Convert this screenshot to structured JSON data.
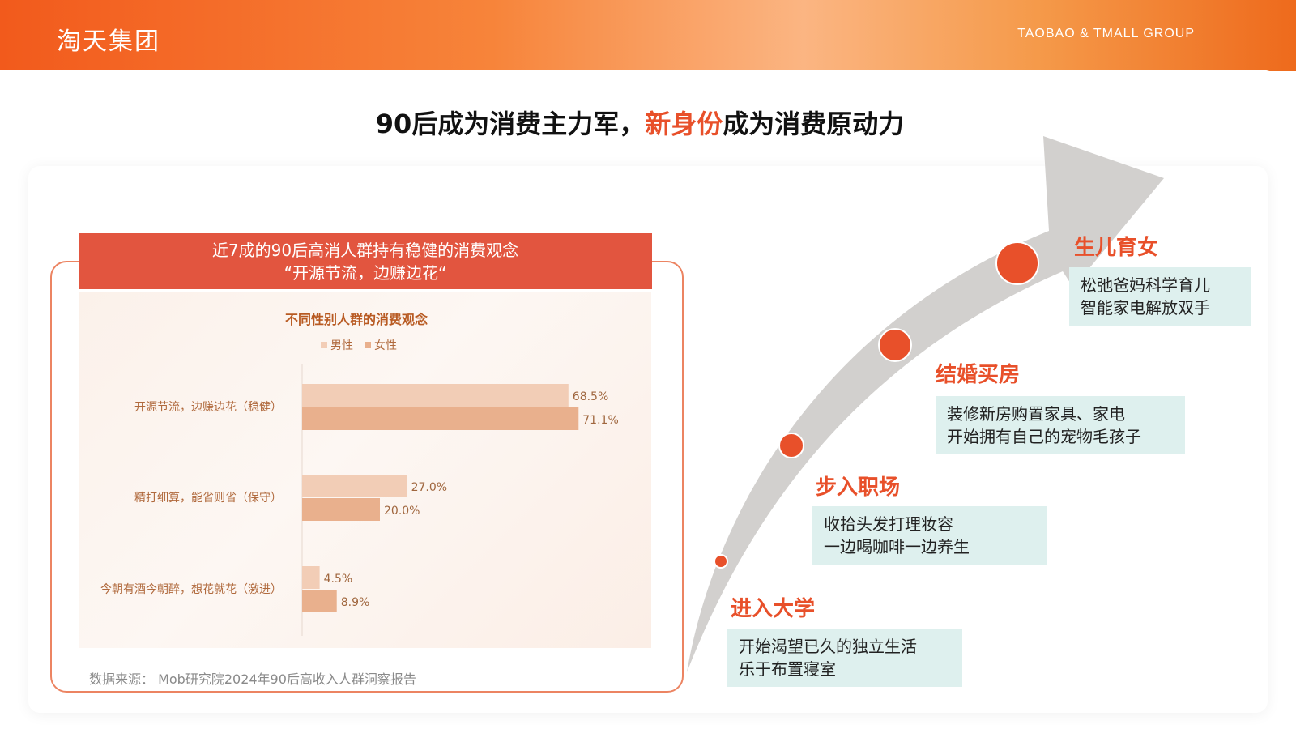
{
  "header": {
    "logo": "淘天集团",
    "brand": "TAOBAO & TMALL GROUP"
  },
  "title": {
    "part1": "90后成为消费主力军，",
    "highlight": "新身份",
    "part2": "成为消费原动力"
  },
  "panel": {
    "banner_line1": "近7成的90后高消人群持有稳健的消费观念",
    "banner_line2": "“开源节流，边赚边花“",
    "source": "数据来源：  Mob研究院2024年90后高收入人群洞察报告"
  },
  "chart_data": {
    "type": "bar",
    "orientation": "horizontal",
    "title": "不同性别人群的消费观念",
    "categories": [
      "开源节流，边赚边花（稳健）",
      "精打细算，能省则省（保守）",
      "今朝有酒今朝醉，想花就花（激进）"
    ],
    "series": [
      {
        "name": "男性",
        "values": [
          68.5,
          27.0,
          4.5
        ],
        "labels": [
          "68.5%",
          "27.0%",
          "4.5%"
        ],
        "color": "#f2cdb6"
      },
      {
        "name": "女性",
        "values": [
          71.1,
          20.0,
          8.9
        ],
        "labels": [
          "71.1%",
          "20.0%",
          "8.9%"
        ],
        "color": "#e9b08d"
      }
    ],
    "xlim": [
      0,
      80
    ],
    "legend": "top",
    "colors": {
      "title": "#b85a22",
      "label": "#b0693c",
      "value": "#a0673f"
    }
  },
  "timeline": {
    "stages": [
      {
        "title": "进入大学",
        "line1": "开始渴望已久的独立生活",
        "line2": "乐于布置寝室"
      },
      {
        "title": "步入职场",
        "line1": "收拾头发打理妆容",
        "line2": "一边喝咖啡一边养生"
      },
      {
        "title": "结婚买房",
        "line1": "装修新房购置家具、家电",
        "line2": "开始拥有自己的宠物毛孩子"
      },
      {
        "title": "生儿育女",
        "line1": "松弛爸妈科学育儿",
        "line2": "智能家电解放双手"
      }
    ],
    "colors": {
      "accent": "#e8502a",
      "box": "#def0ee",
      "arrow": "#d2d0ce"
    }
  }
}
